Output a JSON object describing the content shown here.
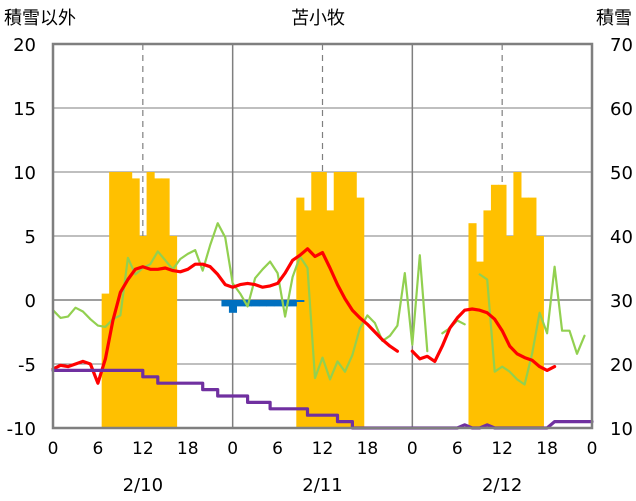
{
  "chart_data": {
    "type": "bar+line",
    "title": "苫小牧",
    "left_axis_label": "積雪以外",
    "right_axis_label": "積雪",
    "left_ylim": [
      -10,
      20
    ],
    "left_ticks": [
      -10,
      -5,
      0,
      5,
      10,
      15,
      20
    ],
    "right_ylim": [
      10,
      70
    ],
    "right_ticks": [
      10,
      20,
      30,
      40,
      50,
      60,
      70
    ],
    "x_range_hours": [
      0,
      72
    ],
    "hour_tick_labels": [
      "0",
      "6",
      "12",
      "18",
      "0",
      "6",
      "12",
      "18",
      "0",
      "6",
      "12",
      "18",
      "0"
    ],
    "date_labels": [
      {
        "label": "2/10",
        "hour": 12
      },
      {
        "label": "2/11",
        "hour": 36
      },
      {
        "label": "2/12",
        "hour": 60
      }
    ],
    "grid": "dashed at 12h, solid day separators at 24h and 48h",
    "series": [
      {
        "kind": "bar",
        "axis": "right",
        "color": "#FFC000",
        "points": [
          [
            7,
            31
          ],
          [
            8,
            50
          ],
          [
            9,
            50
          ],
          [
            10,
            50
          ],
          [
            11,
            49
          ],
          [
            12,
            40
          ],
          [
            13,
            50
          ],
          [
            14,
            49
          ],
          [
            15,
            49
          ],
          [
            16,
            40
          ],
          [
            33,
            46
          ],
          [
            34,
            44
          ],
          [
            35,
            50
          ],
          [
            36,
            50
          ],
          [
            37,
            44
          ],
          [
            38,
            50
          ],
          [
            39,
            50
          ],
          [
            40,
            50
          ],
          [
            41,
            46
          ],
          [
            56,
            42
          ],
          [
            57,
            36
          ],
          [
            58,
            44
          ],
          [
            59,
            48
          ],
          [
            60,
            48
          ],
          [
            61,
            40
          ],
          [
            62,
            50
          ],
          [
            63,
            46
          ],
          [
            64,
            46
          ],
          [
            65,
            40
          ]
        ]
      },
      {
        "kind": "bar",
        "axis": "left",
        "color": "#0070C0",
        "points": [
          [
            23,
            -0.5
          ],
          [
            24,
            -1
          ],
          [
            25,
            -0.5
          ],
          [
            26,
            -0.5
          ],
          [
            27,
            -0.5
          ],
          [
            28,
            -0.5
          ],
          [
            29,
            -0.5
          ],
          [
            30,
            -0.5
          ],
          [
            31,
            -0.5
          ],
          [
            32,
            -0.5
          ],
          [
            33,
            0
          ]
        ]
      },
      {
        "kind": "line",
        "axis": "left",
        "color": "#92D050",
        "points": [
          [
            0,
            -0.8
          ],
          [
            1,
            -1.4
          ],
          [
            2,
            -1.3
          ],
          [
            3,
            -0.6
          ],
          [
            4,
            -0.9
          ],
          [
            5,
            -1.5
          ],
          [
            6,
            -2
          ],
          [
            7,
            -2.1
          ],
          [
            8,
            -1.5
          ],
          [
            9,
            -1.2
          ],
          [
            10,
            3.3
          ],
          [
            11,
            2
          ],
          [
            12,
            2.5
          ],
          [
            13,
            2.8
          ],
          [
            14,
            3.8
          ],
          [
            15,
            3.1
          ],
          [
            16,
            2.4
          ],
          [
            17,
            3.2
          ],
          [
            18,
            3.6
          ],
          [
            19,
            3.9
          ],
          [
            20,
            2.3
          ],
          [
            21,
            4.3
          ],
          [
            22,
            6
          ],
          [
            23,
            4.9
          ],
          [
            24,
            1.3
          ],
          [
            25,
            0.5
          ],
          [
            26,
            -0.5
          ],
          [
            27,
            1.7
          ],
          [
            28,
            2.4
          ],
          [
            29,
            3
          ],
          [
            30,
            2.1
          ],
          [
            31,
            -1.3
          ],
          [
            32,
            1.8
          ],
          [
            33,
            3.4
          ],
          [
            34,
            2.5
          ],
          [
            35,
            -6.1
          ],
          [
            36,
            -4.5
          ],
          [
            37,
            -6.2
          ],
          [
            38,
            -4.8
          ],
          [
            39,
            -5.6
          ],
          [
            40,
            -4.3
          ],
          [
            41,
            -2.2
          ],
          [
            42,
            -1.2
          ],
          [
            43,
            -1.8
          ],
          [
            44,
            -3.2
          ],
          [
            45,
            -2.8
          ],
          [
            46,
            -2
          ],
          [
            47,
            2.1
          ],
          [
            48,
            -3.5
          ],
          [
            49,
            3.5
          ],
          [
            50,
            -4
          ],
          [
            null,
            null
          ],
          [
            52,
            -2.6
          ],
          [
            53,
            -2.2
          ],
          [
            54,
            -1.6
          ],
          [
            55,
            -1.9
          ],
          [
            null,
            null
          ],
          [
            57,
            2
          ],
          [
            58,
            1.6
          ],
          [
            59,
            -5.6
          ],
          [
            60,
            -5.2
          ],
          [
            61,
            -5.6
          ],
          [
            62,
            -6.2
          ],
          [
            63,
            -6.6
          ],
          [
            64,
            -4.2
          ],
          [
            65,
            -1
          ],
          [
            66,
            -2.6
          ],
          [
            67,
            2.6
          ],
          [
            68,
            -2.4
          ],
          [
            69,
            -2.4
          ],
          [
            70,
            -4.2
          ],
          [
            71,
            -2.8
          ]
        ]
      },
      {
        "kind": "line",
        "axis": "left",
        "color": "#FF0000",
        "points": [
          [
            0,
            -5.4
          ],
          [
            1,
            -5.1
          ],
          [
            2,
            -5.2
          ],
          [
            3,
            -5.0
          ],
          [
            4,
            -4.8
          ],
          [
            5,
            -5.0
          ],
          [
            6,
            -6.5
          ],
          [
            7,
            -4.6
          ],
          [
            8,
            -1.6
          ],
          [
            9,
            0.6
          ],
          [
            10,
            1.6
          ],
          [
            11,
            2.4
          ],
          [
            12,
            2.6
          ],
          [
            13,
            2.4
          ],
          [
            14,
            2.4
          ],
          [
            15,
            2.5
          ],
          [
            16,
            2.3
          ],
          [
            17,
            2.2
          ],
          [
            18,
            2.4
          ],
          [
            19,
            2.8
          ],
          [
            20,
            2.8
          ],
          [
            21,
            2.6
          ],
          [
            22,
            2.0
          ],
          [
            23,
            1.2
          ],
          [
            24,
            1.0
          ],
          [
            25,
            1.2
          ],
          [
            26,
            1.3
          ],
          [
            27,
            1.2
          ],
          [
            28,
            1.0
          ],
          [
            29,
            1.1
          ],
          [
            30,
            1.3
          ],
          [
            31,
            2.1
          ],
          [
            32,
            3.1
          ],
          [
            33,
            3.5
          ],
          [
            34,
            4.0
          ],
          [
            35,
            3.4
          ],
          [
            36,
            3.7
          ],
          [
            37,
            2.5
          ],
          [
            38,
            1.2
          ],
          [
            39,
            0.1
          ],
          [
            40,
            -0.8
          ],
          [
            41,
            -1.4
          ],
          [
            42,
            -1.9
          ],
          [
            43,
            -2.5
          ],
          [
            44,
            -3.1
          ],
          [
            45,
            -3.6
          ],
          [
            46,
            -4.0
          ],
          [
            null,
            null
          ],
          [
            48,
            -4.0
          ],
          [
            49,
            -4.6
          ],
          [
            50,
            -4.4
          ],
          [
            51,
            -4.8
          ],
          [
            52,
            -3.6
          ],
          [
            53,
            -2.2
          ],
          [
            54,
            -1.4
          ],
          [
            55,
            -0.8
          ],
          [
            56,
            -0.7
          ],
          [
            57,
            -0.8
          ],
          [
            58,
            -1.0
          ],
          [
            59,
            -1.5
          ],
          [
            60,
            -2.4
          ],
          [
            61,
            -3.6
          ],
          [
            62,
            -4.2
          ],
          [
            63,
            -4.5
          ],
          [
            64,
            -4.7
          ],
          [
            65,
            -5.2
          ],
          [
            66,
            -5.5
          ],
          [
            67,
            -5.2
          ]
        ]
      },
      {
        "kind": "line",
        "axis": "right",
        "color": "#7030A0",
        "points": [
          [
            0,
            19
          ],
          [
            5,
            19
          ],
          [
            6,
            19
          ],
          [
            12,
            19
          ],
          [
            12,
            18
          ],
          [
            14,
            18
          ],
          [
            14,
            17
          ],
          [
            20,
            17
          ],
          [
            20,
            16
          ],
          [
            22,
            16
          ],
          [
            22,
            15
          ],
          [
            26,
            15
          ],
          [
            26,
            14
          ],
          [
            29,
            14
          ],
          [
            29,
            13
          ],
          [
            34,
            13
          ],
          [
            34,
            12
          ],
          [
            38,
            12
          ],
          [
            38,
            11
          ],
          [
            40,
            11
          ],
          [
            40,
            10
          ],
          [
            48,
            10
          ],
          [
            54,
            10
          ],
          [
            55,
            10.5
          ],
          [
            56,
            10
          ],
          [
            57,
            10
          ],
          [
            58,
            10.5
          ],
          [
            59,
            10
          ],
          [
            66,
            10
          ],
          [
            67,
            11
          ],
          [
            72,
            11
          ]
        ]
      }
    ]
  }
}
